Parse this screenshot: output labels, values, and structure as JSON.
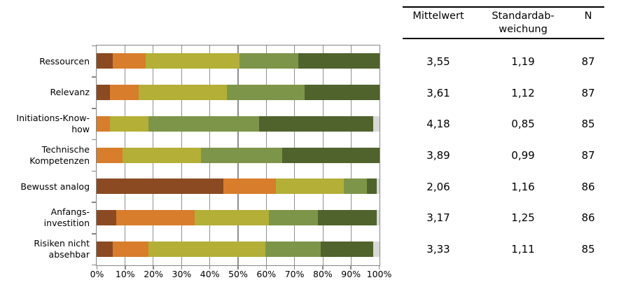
{
  "chart_data": {
    "type": "bar",
    "orientation": "horizontal",
    "stacked": true,
    "title": "",
    "legend": "none",
    "grid": {
      "show": true,
      "color": "#8f8f8f",
      "step_percent": 10
    },
    "x_axis": {
      "min": 0,
      "max": 100,
      "tick_labels": [
        "0%",
        "10%",
        "20%",
        "30%",
        "40%",
        "50%",
        "60%",
        "70%",
        "80%",
        "90%",
        "100%"
      ]
    },
    "categories": [
      "Ressourcen",
      "Relevanz",
      "Initiations-Know-how",
      "Technische Kompetenzen",
      "Bewusst analog",
      "Anfangs-investition",
      "Risiken nicht absehbar"
    ],
    "category_label_lines": [
      [
        "Ressourcen"
      ],
      [
        "Relevanz"
      ],
      [
        "Initiations-Know-",
        "how"
      ],
      [
        "Technische",
        "Kompetenzen"
      ],
      [
        "Bewusst analog"
      ],
      [
        "Anfangs-",
        "investition"
      ],
      [
        "Risiken nicht",
        "absehbar"
      ]
    ],
    "series": [
      {
        "name": "rating-1",
        "color": "#8B4A22",
        "values": [
          5.7,
          4.6,
          0.0,
          0.0,
          44.8,
          6.9,
          5.7
        ]
      },
      {
        "name": "rating-2",
        "color": "#D87D2C",
        "values": [
          11.5,
          10.3,
          4.6,
          9.2,
          18.4,
          27.6,
          12.6
        ]
      },
      {
        "name": "rating-3",
        "color": "#B3AF37",
        "values": [
          33.3,
          31.0,
          13.8,
          27.6,
          24.1,
          26.4,
          41.4
        ]
      },
      {
        "name": "rating-4",
        "color": "#7D9549",
        "values": [
          20.7,
          27.6,
          39.1,
          28.7,
          8.0,
          17.2,
          19.5
        ]
      },
      {
        "name": "rating-5",
        "color": "#50632D",
        "values": [
          28.7,
          26.4,
          40.2,
          34.5,
          3.4,
          20.7,
          18.4
        ]
      },
      {
        "name": "no-answer",
        "color": "#D9D9D9",
        "values": [
          0.0,
          0.0,
          2.3,
          0.0,
          1.1,
          1.1,
          2.3
        ]
      }
    ]
  },
  "table": {
    "header_lines": [
      [
        "Mittelwert"
      ],
      [
        "Standardab-",
        "weichung"
      ],
      [
        "N"
      ]
    ],
    "rows": [
      [
        "3,55",
        "1,19",
        "87"
      ],
      [
        "3,61",
        "1,12",
        "87"
      ],
      [
        "4,18",
        "0,85",
        "85"
      ],
      [
        "3,89",
        "0,99",
        "87"
      ],
      [
        "2,06",
        "1,16",
        "86"
      ],
      [
        "3,17",
        "1,25",
        "86"
      ],
      [
        "3,33",
        "1,11",
        "85"
      ]
    ],
    "rule_color": "#000000"
  },
  "colors": {
    "background": "#ffffff",
    "axis": "#858585",
    "grid": "#8f8f8f",
    "text": "#000000"
  }
}
